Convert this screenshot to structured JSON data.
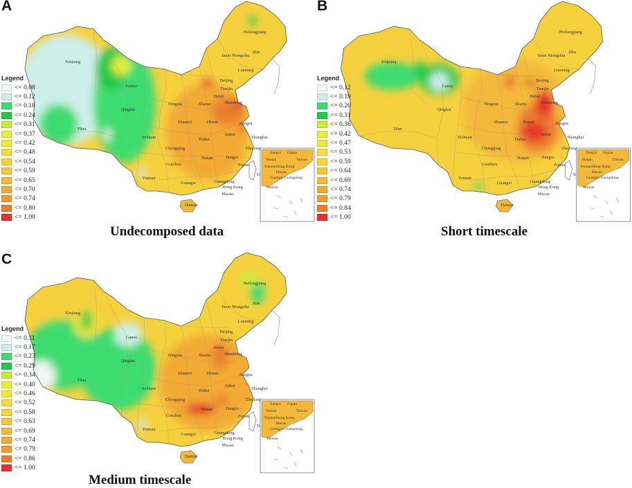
{
  "panels": [
    {
      "letter": "A",
      "caption": "Undecomposed data",
      "legend_title": "Legend",
      "legend": [
        {
          "label": "<= 0.08",
          "color": "#f4f6f6"
        },
        {
          "label": "<= 0.12",
          "color": "#cdeeea"
        },
        {
          "label": "<= 0.18",
          "color": "#3ddc71"
        },
        {
          "label": "<= 0.24",
          "color": "#22c94a"
        },
        {
          "label": "<= 0.31",
          "color": "#c8ec3a"
        },
        {
          "label": "<= 0.37",
          "color": "#e6ef3a"
        },
        {
          "label": "<= 0.42",
          "color": "#f2e63a"
        },
        {
          "label": "<= 0.48",
          "color": "#f6dc3a"
        },
        {
          "label": "<= 0.54",
          "color": "#f7d23a"
        },
        {
          "label": "<= 0.59",
          "color": "#f6c53a"
        },
        {
          "label": "<= 0.65",
          "color": "#f4b93a"
        },
        {
          "label": "<= 0.70",
          "color": "#f2aa36"
        },
        {
          "label": "<= 0.74",
          "color": "#ef9c33"
        },
        {
          "label": "<= 0.80",
          "color": "#ea7e2e"
        },
        {
          "label": "<= 1.00",
          "color": "#e8302a"
        }
      ]
    },
    {
      "letter": "B",
      "caption": "Short timescale",
      "legend_title": "Legend",
      "legend": [
        {
          "label": "<= 0.12",
          "color": "#f4f6f6"
        },
        {
          "label": "<= 0.19",
          "color": "#cdeeea"
        },
        {
          "label": "<= 0.26",
          "color": "#3ddc71"
        },
        {
          "label": "<= 0.31",
          "color": "#22c94a"
        },
        {
          "label": "<= 0.36",
          "color": "#c8ec3a"
        },
        {
          "label": "<= 0.42",
          "color": "#e6ef3a"
        },
        {
          "label": "<= 0.47",
          "color": "#f2e63a"
        },
        {
          "label": "<= 0.53",
          "color": "#f6dc3a"
        },
        {
          "label": "<= 0.59",
          "color": "#f7d23a"
        },
        {
          "label": "<= 0.64",
          "color": "#f6c53a"
        },
        {
          "label": "<= 0.69",
          "color": "#f4b93a"
        },
        {
          "label": "<= 0.74",
          "color": "#f2aa36"
        },
        {
          "label": "<= 0.79",
          "color": "#ef9c33"
        },
        {
          "label": "<= 0.84",
          "color": "#ea7e2e"
        },
        {
          "label": "<= 1.00",
          "color": "#e8302a"
        }
      ]
    },
    {
      "letter": "C",
      "caption": "Medium timescale",
      "legend_title": "Legend",
      "legend": [
        {
          "label": "<= 0.11",
          "color": "#f4f6f6"
        },
        {
          "label": "<= 0.17",
          "color": "#cdeeea"
        },
        {
          "label": "<= 0.23",
          "color": "#3ddc71"
        },
        {
          "label": "<= 0.29",
          "color": "#22c94a"
        },
        {
          "label": "<= 0.34",
          "color": "#c8ec3a"
        },
        {
          "label": "<= 0.40",
          "color": "#e6ef3a"
        },
        {
          "label": "<= 0.46",
          "color": "#f2e63a"
        },
        {
          "label": "<= 0.52",
          "color": "#f6dc3a"
        },
        {
          "label": "<= 0.58",
          "color": "#f7d23a"
        },
        {
          "label": "<= 0.63",
          "color": "#f6c53a"
        },
        {
          "label": "<= 0.69",
          "color": "#f4b93a"
        },
        {
          "label": "<= 0.74",
          "color": "#f2aa36"
        },
        {
          "label": "<= 0.79",
          "color": "#ef9c33"
        },
        {
          "label": "<= 0.86",
          "color": "#ea7e2e"
        },
        {
          "label": "<= 1.00",
          "color": "#e8302a"
        }
      ]
    }
  ],
  "province_labels": [
    "Heilongjiang",
    "Jilin",
    "Inner Mongolia",
    "Liaoning",
    "Beijing",
    "Tianjin",
    "Hebei",
    "Xinjiang",
    "Gansu",
    "Ningxia",
    "Shanxi",
    "Shandong",
    "Qinghai",
    "Shaanxi",
    "Henan",
    "Jiangsu",
    "Tibet",
    "Anhui",
    "Shanghai",
    "Hubei",
    "Sichuan",
    "Chongqing",
    "Zhejiang",
    "Hunan",
    "Jiangxi",
    "Guizhou",
    "Fujian",
    "Taiwan",
    "Yunnan",
    "Guangxi",
    "Guangdong",
    "Hong Kong",
    "Macao",
    "Hainan"
  ],
  "inset_labels": [
    "Jiangxi",
    "Fujian",
    "Hunan",
    "Taiwan",
    "Yunnan",
    "Hong Kong",
    "Macao",
    "Guangxi",
    "Guangdong",
    "Hainan"
  ]
}
